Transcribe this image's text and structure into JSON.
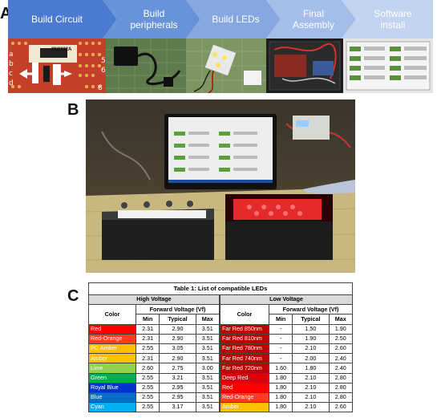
{
  "panels": {
    "a": "A",
    "b": "B",
    "c": "C"
  },
  "steps": [
    {
      "label": "Build Circuit",
      "color": "#4a7bd0"
    },
    {
      "label": "Build\nperipherals",
      "color": "#6993d8"
    },
    {
      "label": "Build LEDs",
      "color": "#86a8e1"
    },
    {
      "label": "Final\nAssembly",
      "color": "#a5bee9"
    },
    {
      "label": "Software\ninstall",
      "color": "#c3d4f1"
    }
  ],
  "circuit_chip_label": "2N2222A",
  "table": {
    "title": "Table 1: List of compatible LEDs",
    "high": {
      "group": "High Voltage",
      "color_header": "Color",
      "vf_header": "Forward Voltage (Vf)",
      "sub": [
        "Min",
        "Typical",
        "Max"
      ],
      "rows": [
        {
          "name": "Red",
          "bg": "#ff0000",
          "fg": "#ffffff",
          "min": "2.31",
          "typ": "2.90",
          "max": "3.51"
        },
        {
          "name": "Red-Orange",
          "bg": "#ff3b1f",
          "fg": "#ffffff",
          "min": "2.31",
          "typ": "2.90",
          "max": "3.51"
        },
        {
          "name": "PC Amber",
          "bg": "#ffbf00",
          "fg": "#ffffff",
          "min": "2.55",
          "typ": "3.05",
          "max": "3.51"
        },
        {
          "name": "Amber",
          "bg": "#ffc000",
          "fg": "#ffffff",
          "min": "2.31",
          "typ": "2.90",
          "max": "3.51"
        },
        {
          "name": "Lime",
          "bg": "#92d050",
          "fg": "#ffffff",
          "min": "2.60",
          "typ": "2.75",
          "max": "3.00"
        },
        {
          "name": "Green",
          "bg": "#00b050",
          "fg": "#ffffff",
          "min": "2.55",
          "typ": "3.21",
          "max": "3.51"
        },
        {
          "name": "Royal Blue",
          "bg": "#0033cc",
          "fg": "#ffffff",
          "min": "2.55",
          "typ": "2.95",
          "max": "3.51"
        },
        {
          "name": "Blue",
          "bg": "#0070c0",
          "fg": "#ffffff",
          "min": "2.55",
          "typ": "2.95",
          "max": "3.51"
        },
        {
          "name": "Cyan",
          "bg": "#00b0f0",
          "fg": "#ffffff",
          "min": "2.55",
          "typ": "3.17",
          "max": "3.51"
        }
      ]
    },
    "low": {
      "group": "Low Voltage",
      "color_header": "Color",
      "vf_header": "Forward Voltage (Vf)",
      "sub": [
        "Min",
        "Typical",
        "Max"
      ],
      "rows": [
        {
          "name": "Far Red 850nm",
          "bg": "#c00000",
          "fg": "#ffffff",
          "min": "-",
          "typ": "1.50",
          "max": "1.90"
        },
        {
          "name": "Far Red 810nm",
          "bg": "#c00000",
          "fg": "#ffffff",
          "min": "-",
          "typ": "1.90",
          "max": "2.50"
        },
        {
          "name": "Far Red 780nm",
          "bg": "#c00000",
          "fg": "#ffffff",
          "min": "-",
          "typ": "2.10",
          "max": "2.60"
        },
        {
          "name": "Far Red 740nm",
          "bg": "#c00000",
          "fg": "#ffffff",
          "min": "-",
          "typ": "2.00",
          "max": "2.40"
        },
        {
          "name": "Far Red 720nm",
          "bg": "#c00000",
          "fg": "#ffffff",
          "min": "1.60",
          "typ": "1.80",
          "max": "2.40"
        },
        {
          "name": "Deep Red",
          "bg": "#e00000",
          "fg": "#ffffff",
          "min": "1.80",
          "typ": "2.10",
          "max": "2.80"
        },
        {
          "name": "Red",
          "bg": "#ff0000",
          "fg": "#ffffff",
          "min": "1.80",
          "typ": "2.10",
          "max": "2.80"
        },
        {
          "name": "Red-Orange",
          "bg": "#ff3b1f",
          "fg": "#ffffff",
          "min": "1.80",
          "typ": "2.10",
          "max": "2.80"
        },
        {
          "name": "Amber",
          "bg": "#ffc000",
          "fg": "#ffffff",
          "min": "1.80",
          "typ": "2.10",
          "max": "2.60"
        }
      ]
    }
  }
}
